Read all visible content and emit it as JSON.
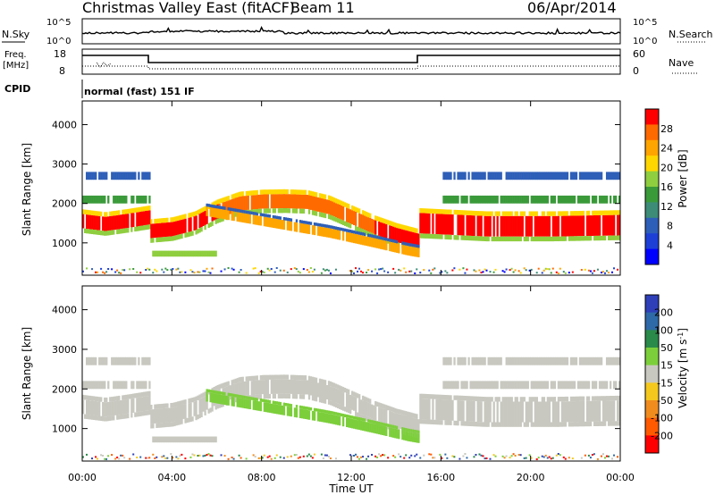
{
  "header": {
    "station": "Christmas Valley East (fitACF)",
    "beam": "Beam 11",
    "date": "06/Apr/2014"
  },
  "nsky_panel": {
    "left_label": "N.Sky",
    "right_label": "N.Search",
    "left_ticks": [
      "10^5",
      "10^0"
    ],
    "right_ticks": [
      "10^5",
      "10^0"
    ]
  },
  "freq_panel": {
    "left_label_1": "Freq.",
    "left_label_2": "[MHz]",
    "right_label": "Nave",
    "left_ticks": [
      "18",
      "8"
    ],
    "right_ticks": [
      "60",
      "0"
    ]
  },
  "cpid": {
    "label": "CPID",
    "program": "normal (fast) 151 IF"
  },
  "chart_data": [
    {
      "type": "heatmap",
      "name": "power",
      "ylabel": "Slant Range [km]",
      "xlabel": "Time UT",
      "x_ticks": [
        "00:00",
        "04:00",
        "08:00",
        "12:00",
        "16:00",
        "20:00",
        "00:00"
      ],
      "x_range_hours": [
        0,
        24
      ],
      "y_ticks": [
        1000,
        2000,
        3000,
        4000
      ],
      "ylim": [
        180,
        4600
      ],
      "colorbar": {
        "label": "Power [dB]",
        "ticks": [
          "28",
          "24",
          "20",
          "16",
          "12",
          "8",
          "4"
        ],
        "colors": [
          "#ff0000",
          "#ff6a00",
          "#ffa500",
          "#ffd700",
          "#8fce3f",
          "#3a9a3a",
          "#3c8c78",
          "#2e5fb8",
          "#1d3fd6",
          "#0000ff"
        ]
      },
      "features": [
        {
          "band": "main",
          "color_class": "high",
          "description_values_km": [
            [
              0,
              1500
            ],
            [
              3,
              1300
            ],
            [
              4,
              1400
            ],
            [
              7,
              2000
            ],
            [
              10,
              1900
            ],
            [
              13,
              1300
            ],
            [
              15,
              1000
            ],
            [
              15,
              1400
            ],
            [
              24,
              1450
            ]
          ]
        }
      ]
    },
    {
      "type": "heatmap",
      "name": "velocity",
      "ylabel": "Slant Range [km]",
      "xlabel": "Time UT",
      "x_ticks": [
        "00:00",
        "04:00",
        "08:00",
        "12:00",
        "16:00",
        "20:00",
        "00:00"
      ],
      "x_range_hours": [
        0,
        24
      ],
      "y_ticks": [
        1000,
        2000,
        3000,
        4000
      ],
      "ylim": [
        180,
        4600
      ],
      "colorbar": {
        "label": "Velocity [m s",
        "label_sup": "-1",
        "label_end": "]",
        "ticks": [
          "200",
          "100",
          "50",
          "15",
          "-15",
          "-50",
          "-100",
          "-200"
        ],
        "colors": [
          "#2e3fb8",
          "#2f6aa8",
          "#2a8a4a",
          "#7ccf3a",
          "#c8c8c0",
          "#f5c81e",
          "#f08c1e",
          "#ff5a00",
          "#ff0000"
        ]
      }
    }
  ]
}
